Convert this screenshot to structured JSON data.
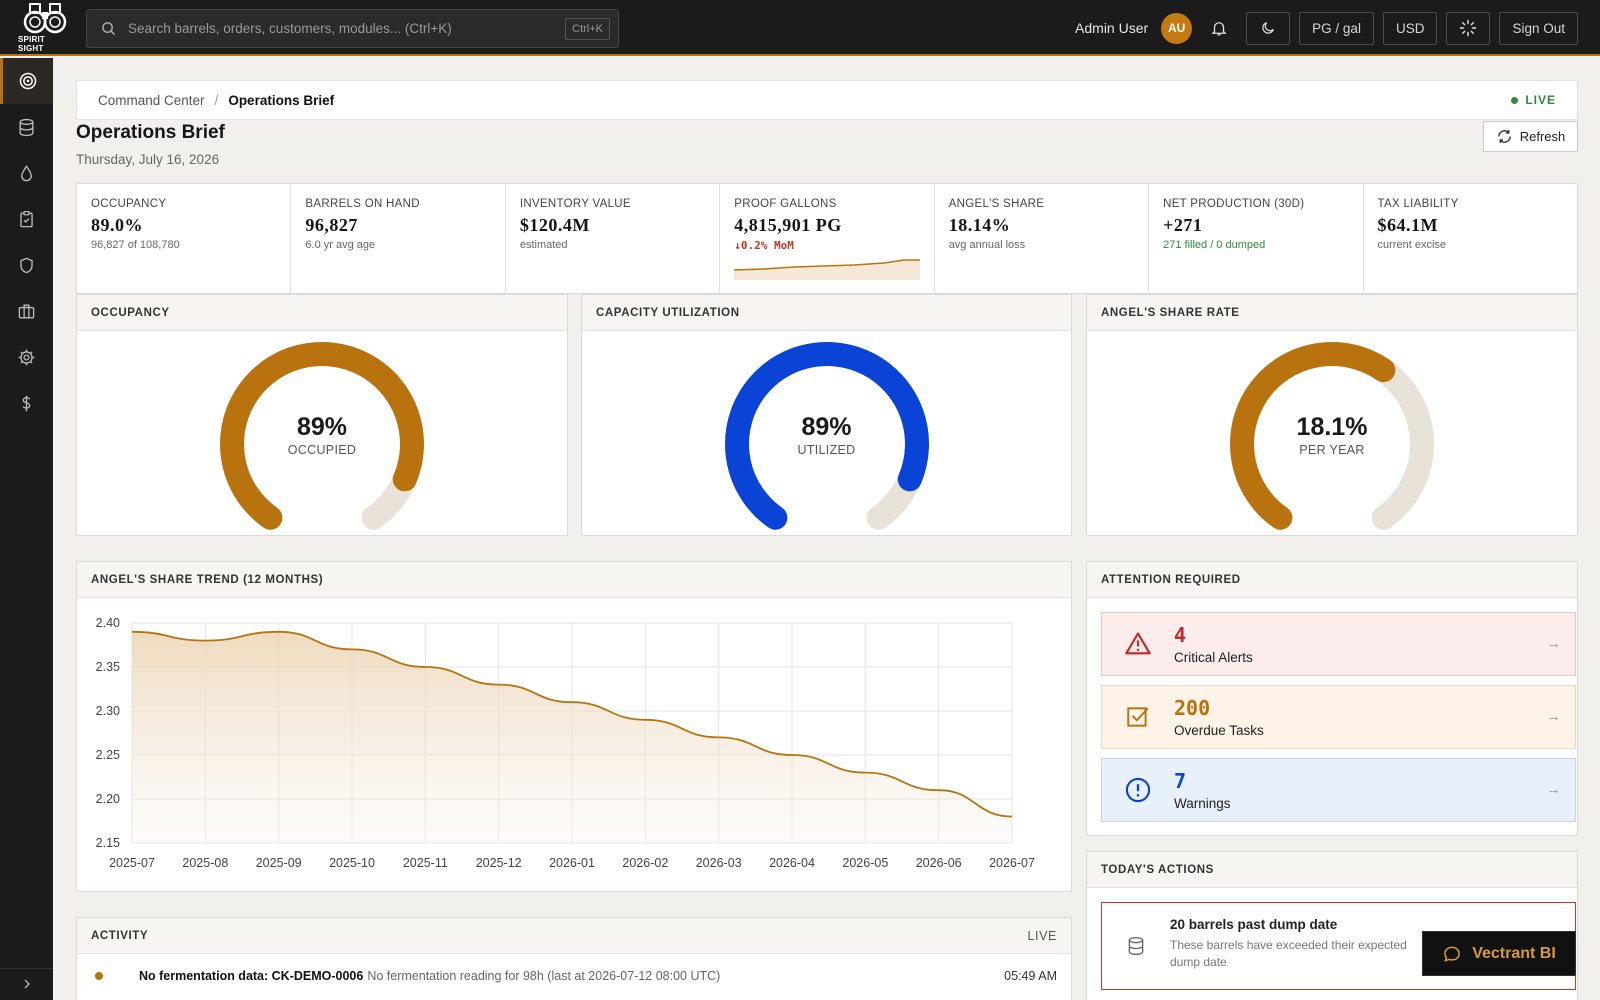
{
  "app": {
    "logo_text": "SPIRIT SIGHT"
  },
  "search": {
    "placeholder": "Search barrels, orders, customers, modules... (Ctrl+K)",
    "shortcut": "Ctrl+K"
  },
  "header": {
    "user_name": "Admin User",
    "avatar_initials": "AU",
    "unit_label": "PG / gal",
    "currency_label": "USD",
    "signout_label": "Sign Out"
  },
  "sidebar": {
    "items": [
      {
        "icon": "target-icon",
        "active": true
      },
      {
        "icon": "database-icon"
      },
      {
        "icon": "droplet-icon"
      },
      {
        "icon": "clipboard-check-icon"
      },
      {
        "icon": "shield-icon"
      },
      {
        "icon": "briefcase-icon"
      },
      {
        "icon": "gear-icon"
      },
      {
        "icon": "dollar-icon"
      }
    ],
    "collapse_icon": "chevron-right-icon"
  },
  "breadcrumb": {
    "root": "Command Center",
    "separator": "/",
    "current": "Operations Brief",
    "live_label": "LIVE"
  },
  "page": {
    "title": "Operations Brief",
    "date": "Thursday, July 16, 2026",
    "refresh_label": "Refresh"
  },
  "kpis": [
    {
      "label": "OCCUPANCY",
      "value": "89.0%",
      "sub": "96,827 of 108,780"
    },
    {
      "label": "BARRELS ON HAND",
      "value": "96,827",
      "sub": "6.0 yr avg age"
    },
    {
      "label": "INVENTORY VALUE",
      "value": "$120.4M",
      "sub": "estimated"
    },
    {
      "label": "PROOF GALLONS",
      "value": "4,815,901 PG",
      "sub": "↓0.2% MoM"
    },
    {
      "label": "ANGEL'S SHARE",
      "value": "18.14%",
      "sub": "avg annual loss"
    },
    {
      "label": "NET PRODUCTION (30D)",
      "value": "+271",
      "sub": "271 filled / 0 dumped"
    },
    {
      "label": "TAX LIABILITY",
      "value": "$64.1M",
      "sub": "current excise"
    }
  ],
  "gauges": [
    {
      "title": "OCCUPANCY",
      "value": "89%",
      "caption": "OCCUPIED",
      "fraction": 0.89,
      "color": "#b8730f"
    },
    {
      "title": "CAPACITY UTILIZATION",
      "value": "89%",
      "caption": "UTILIZED",
      "fraction": 0.89,
      "color": "#0a44d6"
    },
    {
      "title": "ANGEL'S SHARE RATE",
      "value": "18.1%",
      "caption": "PER YEAR",
      "fraction": 0.62,
      "color": "#b8730f"
    }
  ],
  "trend": {
    "title": "ANGEL'S SHARE TREND (12 MONTHS)",
    "chart_data": {
      "type": "area",
      "title": "",
      "xlabel": "",
      "ylabel": "",
      "x": [
        "2025-07",
        "2025-08",
        "2025-09",
        "2025-10",
        "2025-11",
        "2025-12",
        "2026-01",
        "2026-02",
        "2026-03",
        "2026-04",
        "2026-05",
        "2026-06",
        "2026-07"
      ],
      "values": [
        2.39,
        2.38,
        2.39,
        2.37,
        2.35,
        2.33,
        2.31,
        2.29,
        2.27,
        2.25,
        2.23,
        2.21,
        2.18
      ],
      "ylim": [
        2.15,
        2.4
      ],
      "yticks": [
        "2.40",
        "2.35",
        "2.30",
        "2.25",
        "2.20",
        "2.15"
      ],
      "grid": true,
      "color": "#b8730f"
    }
  },
  "attention": {
    "title": "ATTENTION REQUIRED",
    "items": [
      {
        "count": "4",
        "label": "Critical Alerts",
        "icon": "warning-triangle-icon",
        "color": "#c62828",
        "bg": "#fdecec",
        "border": "#f1c4c4"
      },
      {
        "count": "200",
        "label": "Overdue Tasks",
        "icon": "checkbox-icon",
        "color": "#b8730f",
        "bg": "#fdf3e6",
        "border": "#f0d9b8"
      },
      {
        "count": "7",
        "label": "Warnings",
        "icon": "info-circle-icon",
        "color": "#0a44d6",
        "bg": "#e8f0fc",
        "border": "#c3d4f0"
      }
    ]
  },
  "actions": {
    "title": "TODAY'S ACTIONS",
    "items": [
      {
        "title": "20 barrels past dump date",
        "desc": "These barrels have exceeded their expected dump date"
      }
    ]
  },
  "activity": {
    "title": "ACTIVITY",
    "live_label": "LIVE",
    "rows": [
      {
        "title": "No fermentation data: CK-DEMO-0006",
        "desc": "No fermentation reading for 98h (last at 2026-07-12 08:00 UTC)",
        "time": "05:49 AM"
      }
    ]
  },
  "assistant": {
    "label": "Vectrant BI"
  }
}
